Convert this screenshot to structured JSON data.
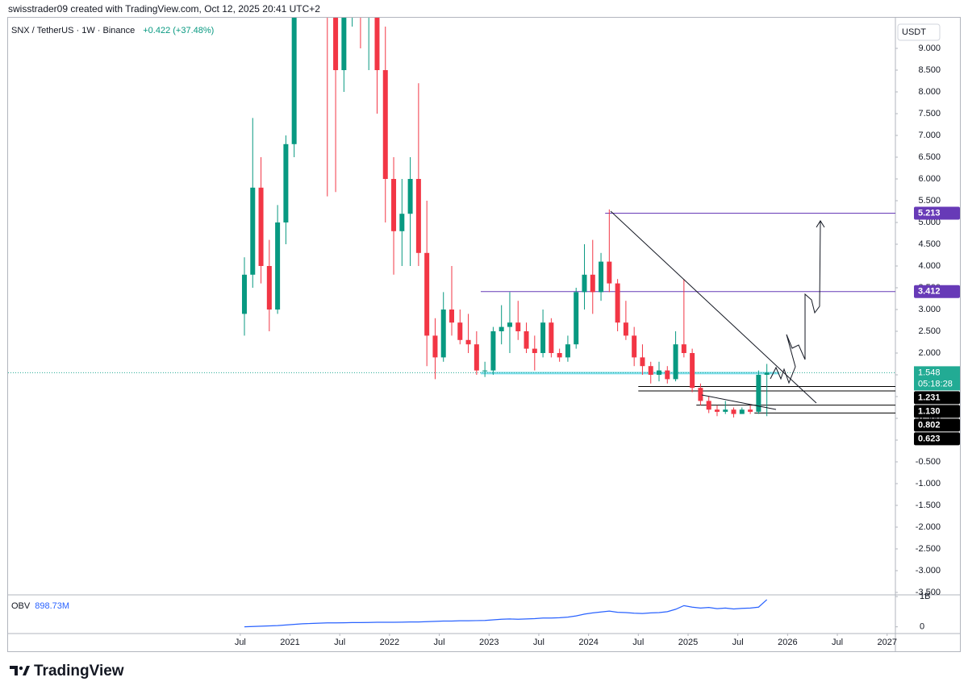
{
  "header": {
    "text": "swisstrader09 created with TradingView.com, Oct 12, 2025 20:41 UTC+2"
  },
  "footer": {
    "brand": "TradingView"
  },
  "chart_data": {
    "type": "candlestick",
    "title": "SNX / TetherUS · 1W · Binance",
    "change": "+0.422 (+37.48%)",
    "currency": "USDT",
    "up_color": "#089981",
    "down_color": "#f23645",
    "x": [
      "2020-07",
      "2020-08",
      "2020-09",
      "2020-10",
      "2020-11",
      "2020-12",
      "2021-01",
      "2021-02",
      "2021-03",
      "2021-04",
      "2021-05",
      "2021-06",
      "2021-07",
      "2021-08",
      "2021-09",
      "2021-10",
      "2021-11",
      "2021-12",
      "2022-01",
      "2022-02",
      "2022-03",
      "2022-04",
      "2022-05",
      "2022-06",
      "2022-07",
      "2022-08",
      "2022-09",
      "2022-10",
      "2022-11",
      "2022-12",
      "2023-01",
      "2023-02",
      "2023-03",
      "2023-04",
      "2023-05",
      "2023-06",
      "2023-07",
      "2023-08",
      "2023-09",
      "2023-10",
      "2023-11",
      "2023-12",
      "2024-01",
      "2024-02",
      "2024-03",
      "2024-04",
      "2024-05",
      "2024-06",
      "2024-07",
      "2024-08",
      "2024-09",
      "2024-10",
      "2024-11",
      "2024-12",
      "2025-01",
      "2025-02",
      "2025-03",
      "2025-04",
      "2025-05",
      "2025-06",
      "2025-07",
      "2025-08",
      "2025-09",
      "2025-10"
    ],
    "open": [
      2.9,
      3.8,
      5.8,
      4.0,
      3.0,
      5.0,
      6.8,
      16,
      22,
      17,
      13,
      10,
      8.5,
      12,
      13,
      10,
      11,
      8.5,
      6.0,
      4.8,
      5.2,
      6.0,
      4.3,
      2.4,
      1.9,
      3.0,
      2.7,
      2.3,
      2.2,
      1.6,
      1.6,
      2.5,
      2.6,
      2.7,
      2.5,
      2.1,
      2.0,
      2.7,
      2.0,
      1.9,
      2.2,
      3.4,
      3.8,
      3.4,
      4.1,
      3.6,
      2.7,
      2.4,
      1.9,
      1.7,
      1.5,
      1.6,
      1.4,
      2.2,
      2.0,
      1.2,
      0.9,
      0.7,
      0.65,
      0.7,
      0.6,
      0.7,
      0.65,
      1.5
    ],
    "high": [
      4.2,
      7.4,
      6.5,
      4.6,
      5.4,
      7.0,
      20,
      28,
      24,
      20,
      25,
      13,
      14,
      15,
      16,
      13,
      12.5,
      9.5,
      6.5,
      6.0,
      6.5,
      8.2,
      5.5,
      2.8,
      3.4,
      4.0,
      3.0,
      2.9,
      2.5,
      1.8,
      2.6,
      3.1,
      3.4,
      3.2,
      2.7,
      2.4,
      3.0,
      2.8,
      2.1,
      2.4,
      3.5,
      4.5,
      4.6,
      4.3,
      5.3,
      3.7,
      3.2,
      2.6,
      2.2,
      1.8,
      1.8,
      1.7,
      2.5,
      3.7,
      2.1,
      1.3,
      1.0,
      0.8,
      0.9,
      0.75,
      0.75,
      0.8,
      1.6,
      1.75
    ],
    "low": [
      2.4,
      3.5,
      3.6,
      2.5,
      2.9,
      4.5,
      6.5,
      13,
      14,
      12,
      5.6,
      5.7,
      8.0,
      9.5,
      9,
      8.5,
      7.5,
      5.0,
      3.8,
      4.0,
      4.0,
      4.0,
      1.7,
      1.4,
      1.8,
      2.4,
      2.2,
      2.0,
      1.5,
      1.45,
      1.5,
      2.2,
      2.0,
      2.3,
      2.0,
      1.6,
      1.9,
      1.9,
      1.8,
      1.8,
      2.1,
      3.0,
      2.9,
      3.2,
      3.4,
      2.5,
      2.3,
      1.7,
      1.5,
      1.3,
      1.35,
      1.3,
      1.35,
      1.9,
      1.1,
      0.8,
      0.62,
      0.55,
      0.6,
      0.52,
      0.6,
      0.6,
      0.6,
      0.55
    ],
    "close": [
      3.8,
      5.8,
      4.0,
      3.0,
      5.0,
      6.8,
      16,
      22,
      17,
      13,
      10,
      8.5,
      12,
      13,
      10,
      11,
      8.5,
      6.0,
      4.8,
      5.2,
      6.0,
      4.3,
      2.4,
      1.9,
      3.0,
      2.7,
      2.3,
      2.2,
      1.6,
      1.6,
      2.5,
      2.6,
      2.7,
      2.5,
      2.1,
      2.0,
      2.7,
      2.0,
      1.9,
      2.2,
      3.4,
      3.8,
      3.4,
      4.1,
      3.6,
      2.7,
      2.4,
      1.9,
      1.7,
      1.5,
      1.6,
      1.4,
      2.2,
      2.0,
      1.2,
      0.9,
      0.7,
      0.65,
      0.7,
      0.6,
      0.7,
      0.65,
      1.5,
      1.548
    ],
    "xlim": [
      "2018-03",
      "2027-02"
    ],
    "xticks": [
      {
        "value": "2020-07",
        "label": "Jul"
      },
      {
        "value": "2021-01",
        "label": "2021"
      },
      {
        "value": "2021-07",
        "label": "Jul"
      },
      {
        "value": "2022-01",
        "label": "2022"
      },
      {
        "value": "2022-07",
        "label": "Jul"
      },
      {
        "value": "2023-01",
        "label": "2023"
      },
      {
        "value": "2023-07",
        "label": "Jul"
      },
      {
        "value": "2024-01",
        "label": "2024"
      },
      {
        "value": "2024-07",
        "label": "Jul"
      },
      {
        "value": "2025-01",
        "label": "2025"
      },
      {
        "value": "2025-07",
        "label": "Jul"
      },
      {
        "value": "2026-01",
        "label": "2026"
      },
      {
        "value": "2026-07",
        "label": "Jul"
      },
      {
        "value": "2027-01",
        "label": "2027"
      }
    ],
    "ylim": [
      -3.556,
      9.704
    ],
    "yticks": [
      {
        "value": 9,
        "label": "9.000"
      },
      {
        "value": 8.5,
        "label": "8.500"
      },
      {
        "value": 8,
        "label": "8.000"
      },
      {
        "value": 7.5,
        "label": "7.500"
      },
      {
        "value": 7,
        "label": "7.000"
      },
      {
        "value": 6.5,
        "label": "6.500"
      },
      {
        "value": 6,
        "label": "6.000"
      },
      {
        "value": 5.5,
        "label": "5.500"
      },
      {
        "value": 5,
        "label": "5.000"
      },
      {
        "value": 4.5,
        "label": "4.500"
      },
      {
        "value": 4,
        "label": "4.000"
      },
      {
        "value": 3.5,
        "label": "3.500"
      },
      {
        "value": 3,
        "label": "3.000"
      },
      {
        "value": 2.5,
        "label": "2.500"
      },
      {
        "value": 2,
        "label": "2.000"
      },
      {
        "value": 1.5,
        "label": "1.500"
      },
      {
        "value": 1,
        "label": "1.000"
      },
      {
        "value": 0.5,
        "label": "0.500"
      },
      {
        "value": 0,
        "label": "0.000"
      },
      {
        "value": -0.5,
        "label": "-0.500"
      },
      {
        "value": -1,
        "label": "-1.000"
      },
      {
        "value": -1.5,
        "label": "-1.500"
      },
      {
        "value": -2,
        "label": "-2.000"
      },
      {
        "value": -2.5,
        "label": "-2.500"
      },
      {
        "value": -3,
        "label": "-3.000"
      },
      {
        "value": -3.5,
        "label": "-3.500"
      }
    ],
    "last_price": 1.548,
    "countdown": "05:18:28",
    "last_color": "#22ab94",
    "levels": [
      {
        "value": 5.213,
        "label": "5.213",
        "start": "2024-03",
        "color": "#673ab7"
      },
      {
        "value": 3.412,
        "label": "3.412",
        "start": "2022-12",
        "color": "#673ab7"
      },
      {
        "value": 1.231,
        "label": "1.231",
        "start": "2024-07",
        "color": "#000000"
      },
      {
        "value": 1.13,
        "label": "1.130",
        "start": "2024-07",
        "color": "#000000"
      },
      {
        "value": 0.802,
        "label": "0.802",
        "start": "2025-02",
        "color": "#000000"
      },
      {
        "value": 0.623,
        "label": "0.623",
        "start": "2025-09",
        "color": "#000000"
      }
    ],
    "zone": {
      "value": 1.54,
      "start": "2022-12",
      "end": "2025-12",
      "color": "#80deea"
    },
    "indicator": {
      "type": "line",
      "name": "OBV",
      "color": "#2962ff",
      "last_value_label": "898.73M",
      "values": [
        0,
        10000000,
        20000000,
        30000000,
        40000000,
        60000000,
        80000000,
        100000000,
        110000000,
        120000000,
        130000000,
        130000000,
        135000000,
        140000000,
        140000000,
        145000000,
        150000000,
        150000000,
        150000000,
        155000000,
        160000000,
        160000000,
        170000000,
        180000000,
        190000000,
        190000000,
        200000000,
        200000000,
        205000000,
        210000000,
        230000000,
        250000000,
        260000000,
        250000000,
        260000000,
        270000000,
        290000000,
        290000000,
        300000000,
        320000000,
        360000000,
        420000000,
        460000000,
        490000000,
        520000000,
        480000000,
        470000000,
        450000000,
        440000000,
        460000000,
        470000000,
        500000000,
        580000000,
        700000000,
        650000000,
        620000000,
        640000000,
        600000000,
        620000000,
        590000000,
        610000000,
        620000000,
        650000000,
        898730000
      ],
      "ylim": [
        -222000000,
        1056000000
      ],
      "yticks": [
        {
          "value": 1000000000,
          "label": "1B"
        },
        0
      ]
    }
  }
}
